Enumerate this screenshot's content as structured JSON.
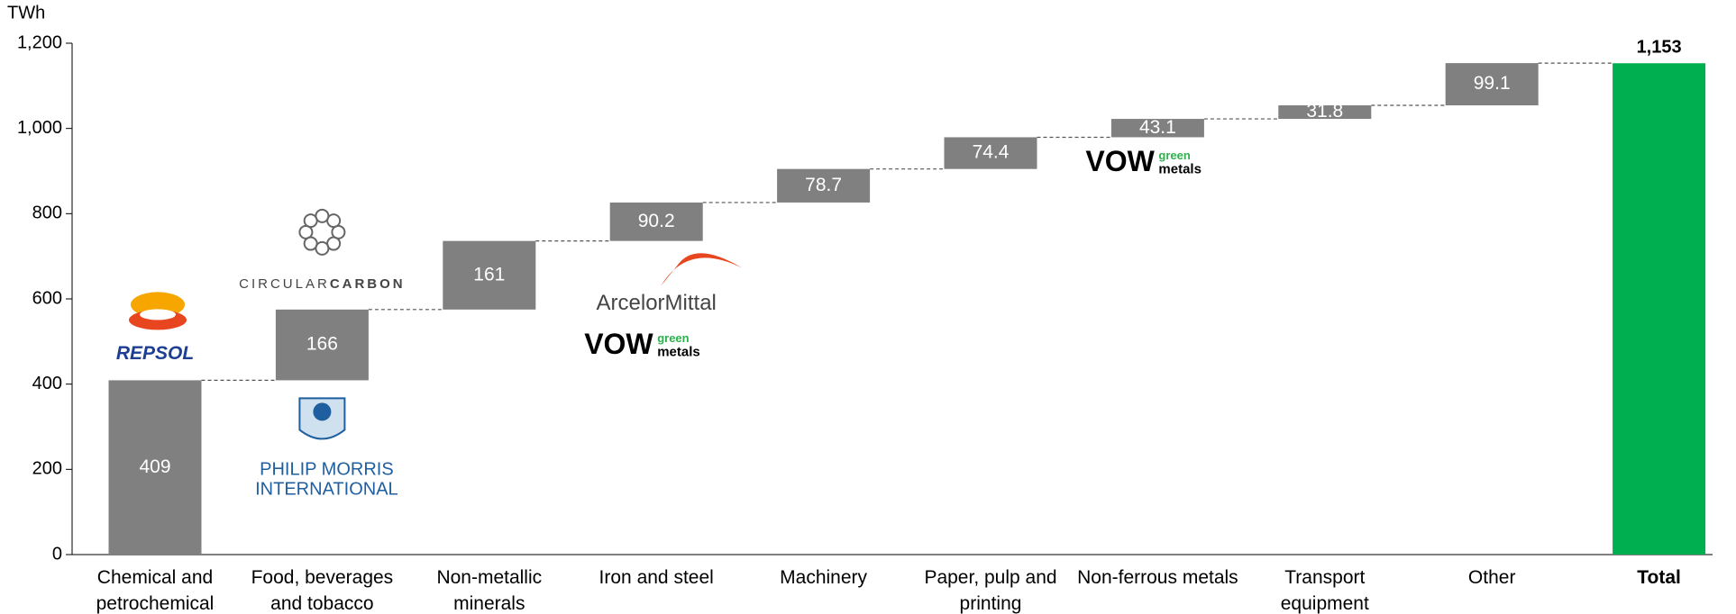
{
  "chart_data": {
    "type": "waterfall",
    "y_unit": "TWh",
    "categories": [
      "Chemical and petrochemical",
      "Food, beverages and tobacco",
      "Non-metallic minerals",
      "Iron and steel",
      "Machinery",
      "Paper, pulp and printing",
      "Non-ferrous metals",
      "Transport equipment",
      "Other",
      "Total"
    ],
    "values": [
      409,
      166,
      161,
      90.2,
      78.7,
      74.4,
      43.1,
      31.8,
      99.1,
      1153
    ],
    "value_labels": [
      "409",
      "166",
      "161",
      "90.2",
      "78.7",
      "74.4",
      "43.1",
      "31.8",
      "99.1",
      "1,153"
    ],
    "colors": [
      "#808080",
      "#808080",
      "#808080",
      "#808080",
      "#808080",
      "#808080",
      "#808080",
      "#808080",
      "#808080",
      "#00b050"
    ],
    "ylim": [
      0,
      1200
    ],
    "yticks": [
      0,
      200,
      400,
      600,
      800,
      {
        "value": 1000,
        "label": "1,000"
      },
      {
        "value": 1200,
        "label": "1,200"
      }
    ],
    "logos": [
      [
        [
          "REPSOL"
        ]
      ],
      [
        [
          "CIRCULAR",
          "CARBON"
        ],
        [
          "PHILIP MORRIS",
          "INTERNATIONAL"
        ]
      ],
      [],
      [
        [
          "ArcelorMittal"
        ],
        [
          "VOW",
          "green",
          "metals"
        ]
      ],
      [],
      [],
      [
        [
          "VOW",
          "green",
          "metals"
        ]
      ],
      [],
      [],
      []
    ]
  }
}
